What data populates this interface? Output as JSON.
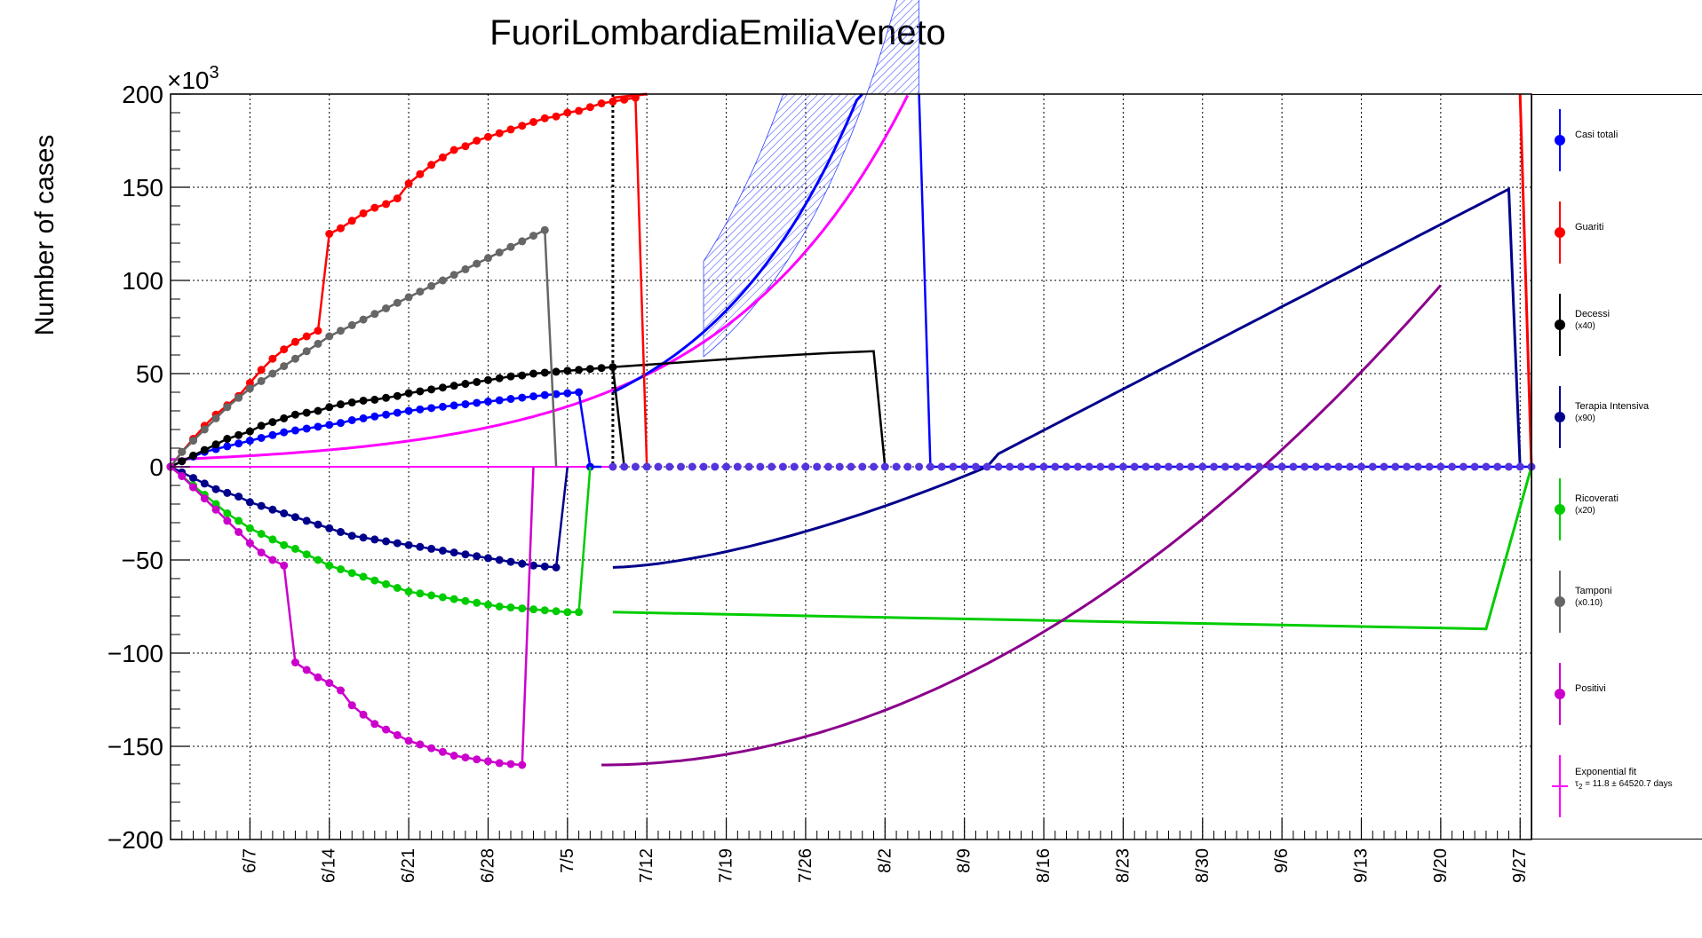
{
  "chart_data": {
    "type": "line",
    "title": "FuoriLombardiaEmiliaVeneto",
    "ylabel": "Number of cases",
    "xlabel": "",
    "y_multiplier": "×10",
    "y_multiplier_exp": "3",
    "ylim": [
      -200000,
      200000
    ],
    "yticks": [
      -200000,
      -150000,
      -100000,
      -50000,
      0,
      50000,
      100000,
      150000,
      200000
    ],
    "ytick_labels": [
      "−200",
      "−150",
      "−100",
      "−50",
      "0",
      "50",
      "100",
      "150",
      "200"
    ],
    "xlim_days": [
      0,
      120
    ],
    "xtick_labels": [
      "6/7",
      "6/14",
      "6/21",
      "6/28",
      "7/5",
      "7/12",
      "7/19",
      "7/26",
      "8/2",
      "8/9",
      "8/16",
      "8/23",
      "8/30",
      "9/6",
      "9/13",
      "9/20",
      "9/27"
    ],
    "grid": true,
    "legend_position": "right",
    "series": [
      {
        "name": "Casi totali",
        "color": "#0000ff",
        "y": [
          0,
          3000,
          5500,
          8000,
          9500,
          11000,
          12500,
          14000,
          15500,
          17000,
          18500,
          19500,
          20500,
          21500,
          22500,
          23500,
          25000,
          26000,
          27000,
          28000,
          29000,
          30000,
          30800,
          31500,
          32200,
          32900,
          33600,
          34300,
          35000,
          35700,
          36400,
          37100,
          37800,
          38500,
          39000,
          39500,
          40000,
          0,
          0
        ]
      },
      {
        "name": "Guariti",
        "color": "#ff0000",
        "y": [
          0,
          8000,
          15000,
          22000,
          28000,
          33000,
          38000,
          45000,
          52000,
          58000,
          63000,
          67000,
          70000,
          73000,
          125000,
          128000,
          132000,
          136000,
          139000,
          141000,
          144000,
          152000,
          157000,
          162000,
          166000,
          170000,
          172000,
          175000,
          177000,
          179000,
          181000,
          183000,
          185000,
          187000,
          188000,
          190000,
          191000,
          193000,
          195000,
          196000,
          197000,
          198000,
          0
        ]
      },
      {
        "name": "Decessi",
        "sub": "(x40)",
        "color": "#000000",
        "y": [
          0,
          3000,
          6000,
          9000,
          12000,
          15000,
          17000,
          19000,
          22000,
          24000,
          26000,
          28000,
          29000,
          30000,
          32000,
          33500,
          34500,
          35500,
          36000,
          37000,
          38000,
          39500,
          40500,
          41500,
          42500,
          43500,
          44500,
          45500,
          46500,
          47500,
          48500,
          49000,
          50000,
          50500,
          51000,
          51500,
          52000,
          52500,
          53000,
          53500,
          0
        ]
      },
      {
        "name": "Terapia Intensiva",
        "sub": "(x90)",
        "color": "#00008b",
        "y": [
          0,
          -3000,
          -6000,
          -9000,
          -12000,
          -14000,
          -16000,
          -19000,
          -21000,
          -23000,
          -25000,
          -27000,
          -29000,
          -31000,
          -33000,
          -35000,
          -37000,
          -38000,
          -39000,
          -40000,
          -41000,
          -42000,
          -43000,
          -44000,
          -45000,
          -46000,
          -47000,
          -48000,
          -49000,
          -50000,
          -51000,
          -52000,
          -53000,
          -53500,
          -54000,
          0
        ]
      },
      {
        "name": "Ricoverati",
        "sub": "(x20)",
        "color": "#00cc00",
        "y": [
          0,
          -5000,
          -10000,
          -15000,
          -20000,
          -25000,
          -29000,
          -33000,
          -36000,
          -39000,
          -42000,
          -44000,
          -47000,
          -50000,
          -53000,
          -55000,
          -57000,
          -59000,
          -61000,
          -63000,
          -65000,
          -67000,
          -68000,
          -69000,
          -70000,
          -71000,
          -72000,
          -73000,
          -74000,
          -75000,
          -75500,
          -76000,
          -76500,
          -77000,
          -77500,
          -78000,
          -78000,
          0
        ]
      },
      {
        "name": "Tamponi",
        "sub": "(x0.10)",
        "color": "#666666",
        "y": [
          0,
          8000,
          14000,
          20000,
          26000,
          32000,
          37000,
          42000,
          46000,
          50000,
          54000,
          58000,
          62000,
          66000,
          70000,
          73000,
          76000,
          79000,
          82000,
          85000,
          88000,
          91000,
          94000,
          97000,
          100000,
          103000,
          106000,
          109000,
          112000,
          115000,
          118000,
          121000,
          124000,
          127000,
          0
        ]
      },
      {
        "name": "Positivi",
        "color": "#cc00cc",
        "y": [
          0,
          -5000,
          -11000,
          -17000,
          -23000,
          -29000,
          -35000,
          -41000,
          -46000,
          -50000,
          -53000,
          -105000,
          -109000,
          -113000,
          -116000,
          -120000,
          -128000,
          -133000,
          -138000,
          -141000,
          -144000,
          -147000,
          -149000,
          -151000,
          -153000,
          -155000,
          -156000,
          -157000,
          -158000,
          -159000,
          -159500,
          -160000,
          0
        ]
      },
      {
        "name": "Exponential fit",
        "color": "#ff00ff",
        "sub_tau": "τ",
        "sub_tau_idx": "2",
        "sub_tau_rest": "= 11.8  ± 64520.7 days"
      }
    ]
  }
}
